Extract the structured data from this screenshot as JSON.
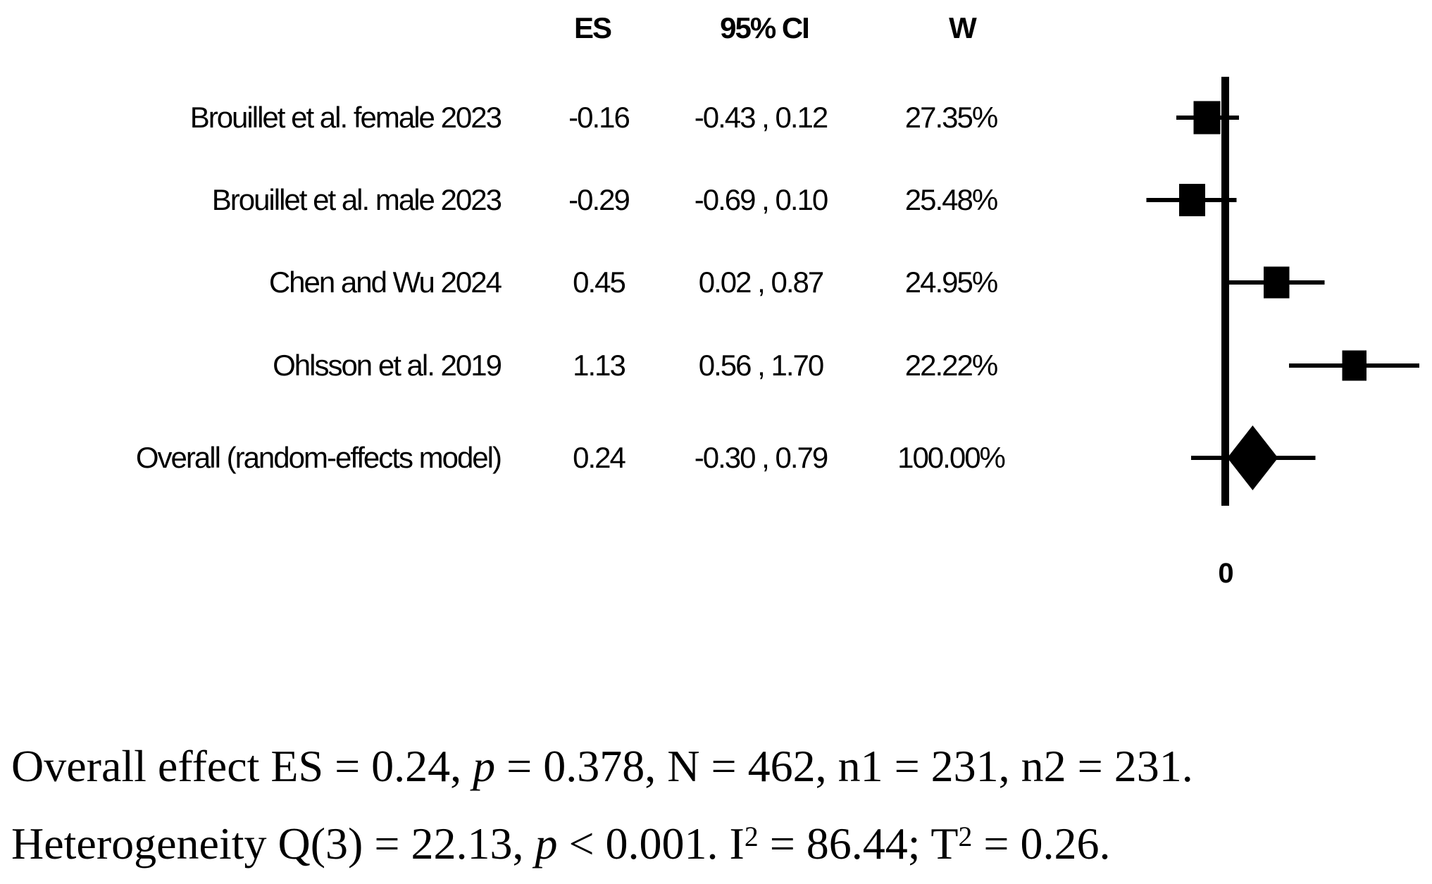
{
  "chart_data": {
    "type": "forest",
    "title": "",
    "xlabel": "",
    "legend": "none",
    "columns": {
      "es": "ES",
      "ci": "95% CI",
      "w": "W"
    },
    "axis": {
      "tick_labels": [
        "0"
      ],
      "reference_line_at": 0
    },
    "colors": {
      "marker": "#000000",
      "line": "#000000",
      "text": "#000000",
      "background": "#ffffff"
    },
    "studies": [
      {
        "label": "Brouillet et al. female 2023",
        "es": -0.16,
        "ci_low": -0.43,
        "ci_high": 0.12,
        "weight_pct": 27.35,
        "es_text": "-0.16",
        "ci_text": "-0.43 , 0.12",
        "w_text": "27.35%",
        "marker": "square"
      },
      {
        "label": "Brouillet et al. male 2023",
        "es": -0.29,
        "ci_low": -0.69,
        "ci_high": 0.1,
        "weight_pct": 25.48,
        "es_text": "-0.29",
        "ci_text": "-0.69 , 0.10",
        "w_text": "25.48%",
        "marker": "square"
      },
      {
        "label": "Chen and Wu 2024",
        "es": 0.45,
        "ci_low": 0.02,
        "ci_high": 0.87,
        "weight_pct": 24.95,
        "es_text": "0.45",
        "ci_text": "0.02 , 0.87",
        "w_text": "24.95%",
        "marker": "square"
      },
      {
        "label": "Ohlsson et al. 2019",
        "es": 1.13,
        "ci_low": 0.56,
        "ci_high": 1.7,
        "weight_pct": 22.22,
        "es_text": "1.13",
        "ci_text": "0.56 , 1.70",
        "w_text": "22.22%",
        "marker": "square"
      },
      {
        "label": "Overall (random-effects model)",
        "es": 0.24,
        "ci_low": -0.3,
        "ci_high": 0.79,
        "weight_pct": 100.0,
        "es_text": "0.24",
        "ci_text": "-0.30 , 0.79",
        "w_text": "100.00%",
        "marker": "diamond"
      }
    ]
  },
  "footer": {
    "line1_segments": [
      {
        "text": "Overall effect ES = 0.24, "
      },
      {
        "text": "p",
        "style": "italic"
      },
      {
        "text": " = 0.378, N = 462, n1 = 231, n2 = 231."
      }
    ],
    "line2_segments": [
      {
        "text": "Heterogeneity Q(3) = 22.13, "
      },
      {
        "text": "p",
        "style": "italic"
      },
      {
        "text": " < 0.001. I"
      },
      {
        "text": "2",
        "style": "sup"
      },
      {
        "text": " = 86.44; T"
      },
      {
        "text": "2",
        "style": "sup"
      },
      {
        "text": " = 0.26."
      }
    ]
  }
}
